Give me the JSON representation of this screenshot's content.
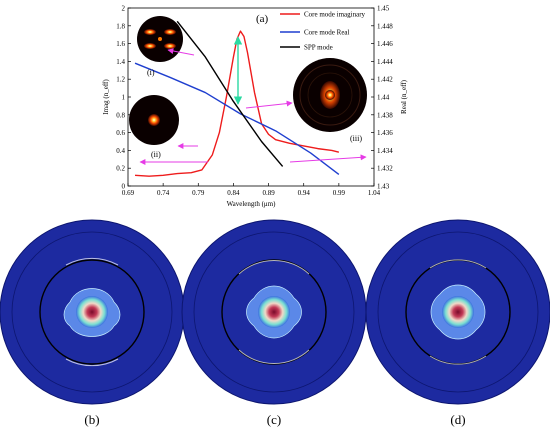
{
  "chart_data": {
    "type": "line",
    "title": "",
    "panel_label": "(a)",
    "xlabel": "Wavelength (μm)",
    "ylabel_left": "Imag (n_eff)",
    "ylabel_right": "Real (n_eff)",
    "xlim": [
      0.69,
      1.04
    ],
    "ylim_left": [
      0,
      2
    ],
    "ylim_right": [
      1.43,
      1.45
    ],
    "x_ticks": [
      "0.69",
      "0.74",
      "0.79",
      "0.84",
      "0.89",
      "0.94",
      "0.99",
      "1.04"
    ],
    "y_left_ticks": [
      "0",
      "0.2",
      "0.4",
      "0.6",
      "0.8",
      "1",
      "1.2",
      "1.4",
      "1.6",
      "1.8",
      "2"
    ],
    "y_right_ticks": [
      "1.43",
      "1.432",
      "1.434",
      "1.436",
      "1.438",
      "1.44",
      "1.442",
      "1.444",
      "1.446",
      "1.448",
      "1.45"
    ],
    "series": [
      {
        "name": "Core mode imaginary",
        "axis": "left",
        "color": "#ee1c1c",
        "x": [
          0.7,
          0.72,
          0.74,
          0.76,
          0.78,
          0.795,
          0.81,
          0.82,
          0.83,
          0.84,
          0.845,
          0.85,
          0.855,
          0.86,
          0.87,
          0.88,
          0.89,
          0.9,
          0.92,
          0.94,
          0.96,
          0.98,
          0.99
        ],
        "y": [
          0.12,
          0.11,
          0.12,
          0.14,
          0.15,
          0.18,
          0.35,
          0.6,
          1.0,
          1.45,
          1.65,
          1.74,
          1.68,
          1.5,
          1.05,
          0.7,
          0.58,
          0.52,
          0.48,
          0.45,
          0.42,
          0.4,
          0.38
        ]
      },
      {
        "name": "Core mode Real",
        "axis": "right",
        "color": "#1f3fcf",
        "x": [
          0.7,
          0.75,
          0.8,
          0.85,
          0.9,
          0.95,
          0.99
        ],
        "y": [
          1.4438,
          1.4422,
          1.4405,
          1.4381,
          1.4362,
          1.4337,
          1.4313
        ]
      },
      {
        "name": "SPP mode",
        "axis": "right",
        "color": "#000000",
        "x": [
          0.76,
          0.8,
          0.84,
          0.88,
          0.91
        ],
        "y": [
          1.4485,
          1.4445,
          1.4395,
          1.435,
          1.4322
        ]
      }
    ],
    "inset_labels": [
      "(i)",
      "(ii)",
      "(iii)"
    ],
    "field_panel_labels": [
      "(b)",
      "(c)",
      "(d)"
    ],
    "colors": {
      "field_background": "#1d2aa0",
      "core_mode_imaginary": "#ee1c1c",
      "core_mode_real": "#1f3fcf",
      "spp_mode": "#000000",
      "annotation_arrows": "#e63be6",
      "peak_arrow": "#2bd9a2"
    }
  }
}
